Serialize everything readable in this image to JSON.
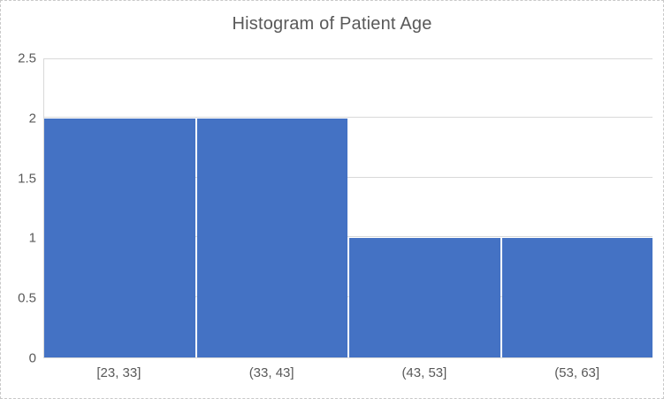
{
  "chart_data": {
    "type": "bar",
    "title": "Histogram of Patient Age",
    "categories": [
      "[23, 33]",
      "(33, 43]",
      "(43, 53]",
      "(53, 63]"
    ],
    "values": [
      2,
      2,
      1,
      1
    ],
    "xlabel": "",
    "ylabel": "",
    "ylim": [
      0,
      2.5
    ],
    "yticks": [
      0,
      0.5,
      1,
      1.5,
      2,
      2.5
    ],
    "grid": true,
    "legend": false
  },
  "colors": {
    "bar": "#4472c4",
    "gridline": "#d9d9d9",
    "axis_line": "#d9d9d9",
    "title_text": "#595959",
    "tick_text": "#595959",
    "chart_border": "#c9c9c9",
    "background": "#ffffff"
  }
}
